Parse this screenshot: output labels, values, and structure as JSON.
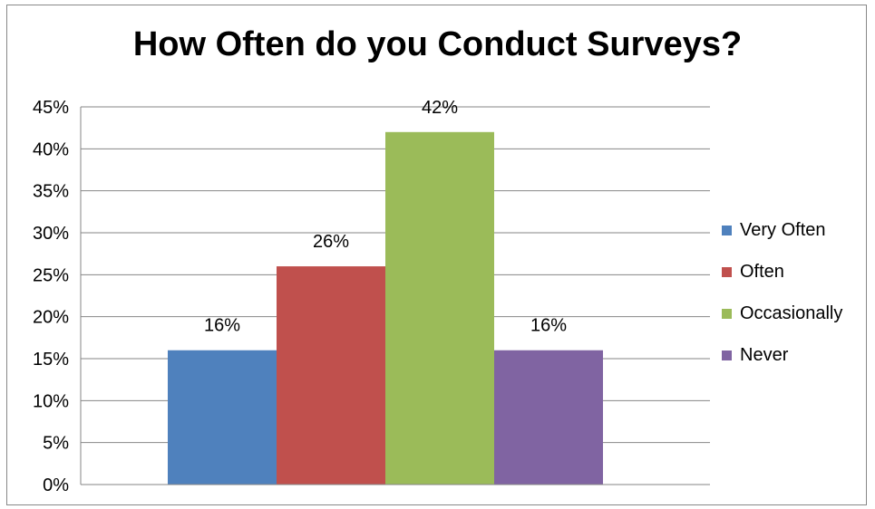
{
  "chart_data": {
    "type": "bar",
    "title": "How Often do you Conduct Surveys?",
    "xlabel": "",
    "ylabel": "",
    "ylim": [
      0,
      45
    ],
    "y_tick_step": 5,
    "y_tick_format": "percent",
    "grid": true,
    "legend_position": "right",
    "series": [
      {
        "name": "Very Often",
        "value": 16,
        "label": "16%",
        "color": "#4F81BD"
      },
      {
        "name": "Often",
        "value": 26,
        "label": "26%",
        "color": "#C0504D"
      },
      {
        "name": "Occasionally",
        "value": 42,
        "label": "42%",
        "color": "#9BBB59"
      },
      {
        "name": "Never",
        "value": 16,
        "label": "16%",
        "color": "#8064A2"
      }
    ]
  }
}
